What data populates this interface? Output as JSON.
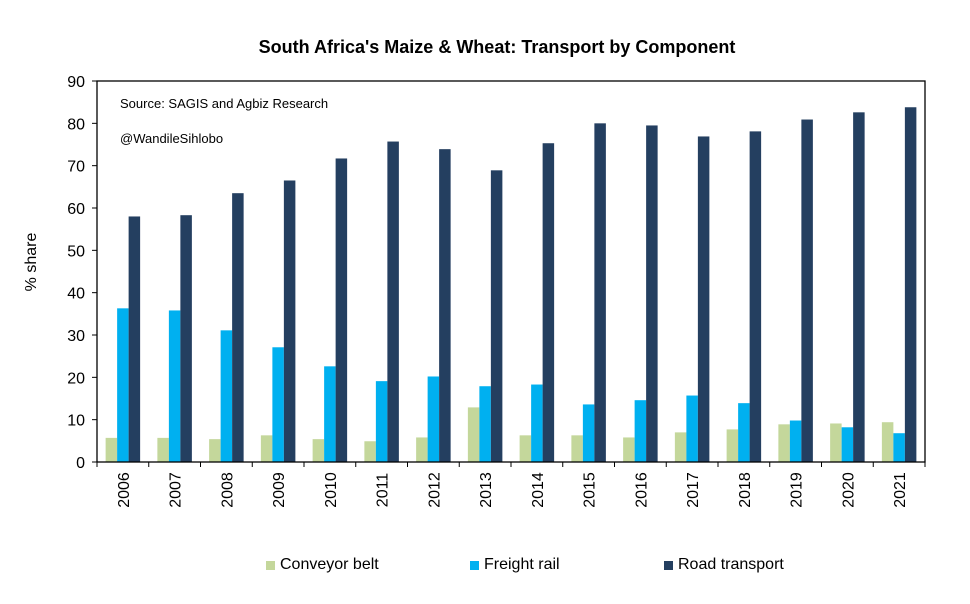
{
  "chart_data": {
    "type": "bar",
    "title": "South Africa's Maize & Wheat: Transport by Component",
    "ylabel": "% share",
    "xlabel": "",
    "ylim": [
      0,
      90
    ],
    "yticks": [
      0,
      10,
      20,
      30,
      40,
      50,
      60,
      70,
      80,
      90
    ],
    "grid": false,
    "legend_position": "bottom",
    "annotations": [
      "Source: SAGIS and Agbiz Research",
      "@WandileSihlobo"
    ],
    "categories": [
      "2006",
      "2007",
      "2008",
      "2009",
      "2010",
      "2011",
      "2012",
      "2013",
      "2014",
      "2015",
      "2016",
      "2017",
      "2018",
      "2019",
      "2020",
      "2021"
    ],
    "series": [
      {
        "name": "Conveyor belt",
        "color": "#c4d79b",
        "values": [
          5.7,
          5.7,
          5.4,
          6.3,
          5.4,
          4.9,
          5.8,
          12.9,
          6.3,
          6.3,
          5.8,
          7.0,
          7.7,
          8.9,
          9.1,
          9.4
        ]
      },
      {
        "name": "Freight rail",
        "color": "#00b0f0",
        "values": [
          36.3,
          35.8,
          31.1,
          27.1,
          22.6,
          19.1,
          20.2,
          17.9,
          18.3,
          13.6,
          14.6,
          15.7,
          13.9,
          9.8,
          8.2,
          6.8
        ]
      },
      {
        "name": "Road transport",
        "color": "#243f60",
        "values": [
          58.0,
          58.3,
          63.5,
          66.5,
          71.7,
          75.7,
          73.9,
          68.9,
          75.3,
          80.0,
          79.5,
          76.9,
          78.1,
          80.9,
          82.6,
          83.8
        ]
      }
    ]
  }
}
